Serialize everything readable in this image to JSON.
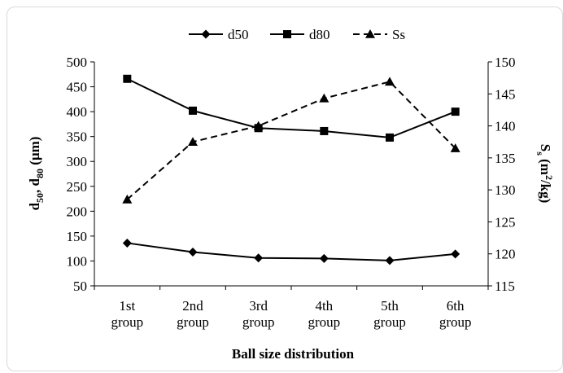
{
  "chart_data": {
    "type": "line",
    "categories": [
      [
        "1st",
        "group"
      ],
      [
        "2nd",
        "group"
      ],
      [
        "3rd",
        "group"
      ],
      [
        "4th",
        "group"
      ],
      [
        "5th",
        "group"
      ],
      [
        "6th",
        "group"
      ]
    ],
    "xlabel": "Ball size distribution",
    "ylabel_left": {
      "main": "d",
      "sub1": "50",
      "mid": ", d",
      "sub2": "80",
      "unit": " (μm)"
    },
    "ylabel_right": {
      "main": "S",
      "sub": "s",
      "unit_pre": " (m",
      "sup": "2",
      "unit_post": "/kg)"
    },
    "y_left": {
      "min": 50,
      "max": 500,
      "step": 50,
      "ticks": [
        "50",
        "100",
        "150",
        "200",
        "250",
        "300",
        "350",
        "400",
        "450",
        "500"
      ]
    },
    "y_right": {
      "min": 115,
      "max": 150,
      "step": 5,
      "ticks": [
        "115",
        "120",
        "125",
        "130",
        "135",
        "140",
        "145",
        "150"
      ]
    },
    "grid": false,
    "legend_position": "top",
    "series": [
      {
        "name": "d50",
        "axis": "left",
        "marker": "diamond",
        "line": "solid",
        "color": "#000000",
        "values": [
          136,
          118,
          106,
          105,
          101,
          114
        ]
      },
      {
        "name": "d80",
        "axis": "left",
        "marker": "square",
        "line": "solid",
        "color": "#000000",
        "values": [
          466,
          402,
          367,
          361,
          348,
          400
        ]
      },
      {
        "name": "Ss",
        "axis": "right",
        "marker": "triangle",
        "line": "dashed",
        "color": "#000000",
        "values": [
          128.5,
          137.5,
          140.0,
          144.3,
          146.9,
          136.5
        ]
      }
    ]
  }
}
